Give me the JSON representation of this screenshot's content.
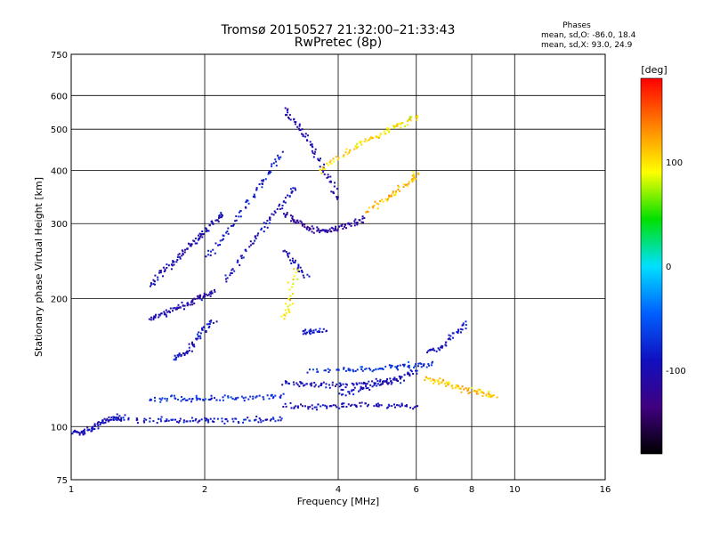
{
  "chart_data": {
    "type": "scatter",
    "title": "Tromsø 20150527 21:32:00–21:33:43",
    "subtitle": "RwPretec (8p)",
    "xlabel": "Frequency [MHz]",
    "ylabel": "Stationary phase Virtual Height [km]",
    "x_scale": "log",
    "y_scale": "log",
    "xlim": [
      1,
      16
    ],
    "ylim": [
      75,
      750
    ],
    "x_ticks": [
      1,
      2,
      4,
      6,
      8,
      10,
      16
    ],
    "y_ticks": [
      75,
      100,
      200,
      300,
      400,
      500,
      600,
      750
    ],
    "x_ticklabels": [
      "1",
      "2",
      "4",
      "6",
      "8",
      "10",
      "16"
    ],
    "y_ticklabels": [
      "75",
      "100",
      "200",
      "300",
      "400",
      "500",
      "600",
      "750"
    ],
    "grid": true,
    "info": {
      "heading": "Phases",
      "line1": "mean, sd,O: -86.0, 18.4",
      "line2": "mean, sd,X:  93.0, 24.9"
    },
    "colorbar": {
      "label": "[deg]",
      "range": [
        -180,
        180
      ],
      "ticks": [
        100,
        0,
        -100
      ],
      "ticklabels": [
        "100",
        "0",
        "-100"
      ],
      "colors": [
        "#ff0000",
        "#ff8000",
        "#ffff00",
        "#00e000",
        "#00e0ff",
        "#0060ff",
        "#1010c0",
        "#400080",
        "#000000"
      ]
    },
    "traces": [
      {
        "name": "",
        "phase": -95,
        "x": [
          1.0,
          1.05,
          1.1,
          1.15,
          1.2,
          1.25,
          1.3
        ],
        "y": [
          98,
          97,
          99,
          102,
          104,
          106,
          104
        ]
      },
      {
        "name": "",
        "phase": -88,
        "x": [
          1.3,
          1.5,
          1.7,
          1.9,
          2.1,
          2.4,
          2.7,
          3.0
        ],
        "y": [
          105,
          104,
          104,
          104,
          104,
          104,
          104,
          105
        ]
      },
      {
        "name": "",
        "phase": -75,
        "x": [
          1.5,
          1.7,
          1.9,
          2.1,
          2.4,
          2.7,
          3.0
        ],
        "y": [
          116,
          117,
          117,
          117,
          118,
          118,
          119
        ]
      },
      {
        "name": "",
        "phase": -100,
        "x": [
          3.0,
          3.4,
          3.8,
          4.2,
          4.8,
          5.4,
          6.0
        ],
        "y": [
          113,
          112,
          112,
          113,
          113,
          112,
          112
        ]
      },
      {
        "name": "",
        "phase": -95,
        "x": [
          3.0,
          3.3,
          3.6,
          4.0,
          4.5,
          5.0,
          5.6
        ],
        "y": [
          127,
          127,
          126,
          126,
          127,
          128,
          128
        ]
      },
      {
        "name": "",
        "phase": -95,
        "x": [
          4.0,
          4.4,
          4.8,
          5.2,
          5.6,
          6.0
        ],
        "y": [
          120,
          122,
          125,
          128,
          132,
          136
        ]
      },
      {
        "name": "",
        "phase": -70,
        "x": [
          3.4,
          4.0,
          4.5,
          5.0,
          5.5,
          6.0,
          6.5
        ],
        "y": [
          136,
          137,
          137,
          138,
          139,
          140,
          141
        ]
      },
      {
        "name": "",
        "phase": 110,
        "x": [
          6.3,
          6.7,
          7.1,
          7.5,
          8.0,
          8.5,
          9.0
        ],
        "y": [
          130,
          128,
          126,
          124,
          122,
          120,
          118
        ]
      },
      {
        "name": "",
        "phase": -90,
        "x": [
          6.3,
          6.8,
          7.3,
          7.8
        ],
        "y": [
          150,
          155,
          165,
          178
        ]
      },
      {
        "name": "",
        "phase": -100,
        "x": [
          1.5,
          1.6,
          1.7,
          1.8,
          1.9,
          2.0,
          2.1,
          2.2
        ],
        "y": [
          215,
          230,
          245,
          260,
          275,
          290,
          305,
          320
        ]
      },
      {
        "name": "",
        "phase": -105,
        "x": [
          1.5,
          1.6,
          1.7,
          1.8,
          1.9,
          2.0,
          2.1
        ],
        "y": [
          180,
          185,
          190,
          195,
          200,
          205,
          210
        ]
      },
      {
        "name": "",
        "phase": -90,
        "x": [
          1.7,
          1.8,
          1.9,
          2.0,
          2.1
        ],
        "y": [
          145,
          150,
          160,
          170,
          180
        ]
      },
      {
        "name": "",
        "phase": -85,
        "x": [
          2.0,
          2.2,
          2.4,
          2.6,
          2.8,
          3.0
        ],
        "y": [
          250,
          280,
          320,
          360,
          400,
          440
        ]
      },
      {
        "name": "",
        "phase": -95,
        "x": [
          2.2,
          2.4,
          2.6,
          2.8,
          3.0,
          3.2
        ],
        "y": [
          220,
          250,
          280,
          310,
          340,
          370
        ]
      },
      {
        "name": "",
        "phase": -105,
        "x": [
          3.0,
          3.2,
          3.4,
          3.6,
          3.8,
          4.0
        ],
        "y": [
          560,
          520,
          480,
          430,
          380,
          340
        ]
      },
      {
        "name": "",
        "phase": -115,
        "x": [
          3.0,
          3.2,
          3.4,
          3.6,
          3.8,
          4.0,
          4.3,
          4.6
        ],
        "y": [
          320,
          305,
          295,
          290,
          290,
          295,
          300,
          310
        ]
      },
      {
        "name": "",
        "phase": -95,
        "x": [
          3.0,
          3.2,
          3.4
        ],
        "y": [
          260,
          240,
          225
        ]
      },
      {
        "name": "",
        "phase": 100,
        "x": [
          3.6,
          4.0,
          4.4,
          4.8,
          5.2,
          5.6,
          6.0
        ],
        "y": [
          400,
          430,
          460,
          480,
          500,
          520,
          540
        ]
      },
      {
        "name": "",
        "phase": 115,
        "x": [
          4.6,
          5.0,
          5.4,
          5.8,
          6.0
        ],
        "y": [
          320,
          340,
          360,
          380,
          400
        ]
      },
      {
        "name": "",
        "phase": 95,
        "x": [
          3.0,
          3.1,
          3.2
        ],
        "y": [
          180,
          200,
          240
        ]
      },
      {
        "name": "",
        "phase": -85,
        "x": [
          3.3,
          3.5,
          3.7
        ],
        "y": [
          168,
          168,
          169
        ]
      }
    ]
  }
}
